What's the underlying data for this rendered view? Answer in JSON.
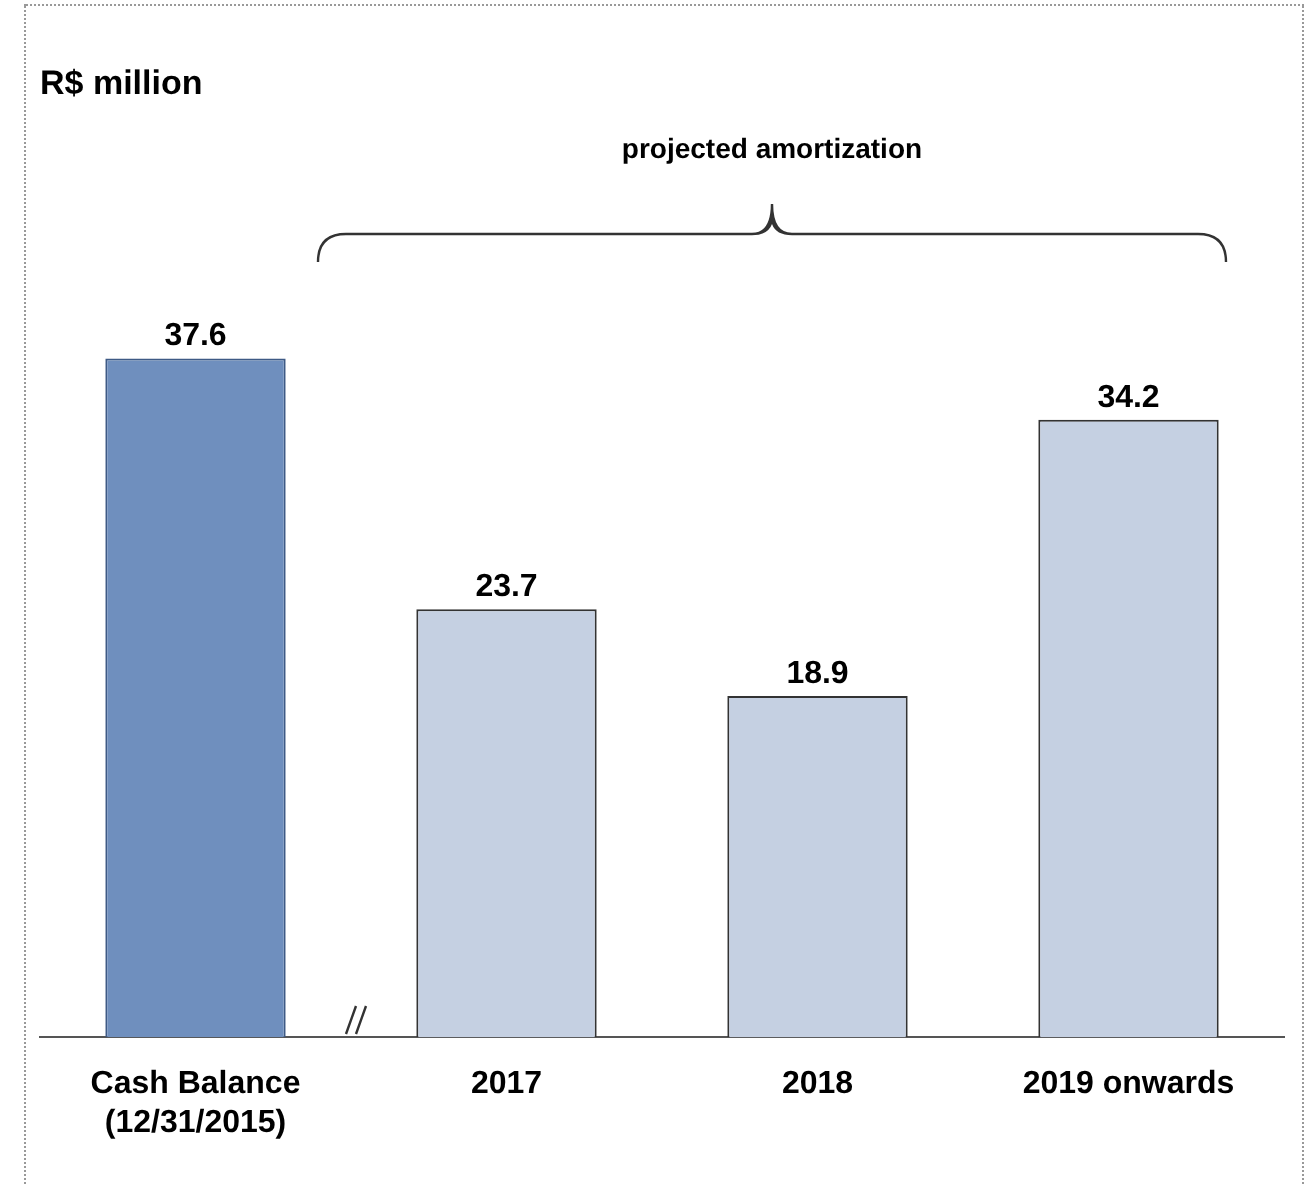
{
  "chart_data": {
    "type": "bar",
    "title": "R$ million",
    "categories": [
      "Cash Balance (12/31/2015)",
      "2017",
      "2018",
      "2019 onwards"
    ],
    "values": [
      37.6,
      23.7,
      18.9,
      34.2
    ],
    "colors": [
      "#6f8fbe",
      "#c5d0e2",
      "#c5d0e2",
      "#c5d0e2"
    ],
    "annotations": [
      "projected amortization"
    ],
    "data_labels": true,
    "grid": false,
    "legend": false
  }
}
